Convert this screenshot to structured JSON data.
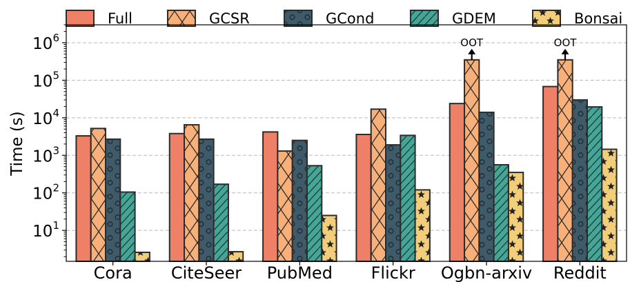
{
  "chart_data": {
    "type": "bar",
    "title": "",
    "xlabel": "",
    "ylabel": "Time (s)",
    "yscale": "log",
    "ylim": [
      1.5,
      3000000
    ],
    "y_ticks": [
      {
        "base": "10",
        "exp": "1",
        "value": 10
      },
      {
        "base": "10",
        "exp": "2",
        "value": 100
      },
      {
        "base": "10",
        "exp": "3",
        "value": 1000
      },
      {
        "base": "10",
        "exp": "4",
        "value": 10000
      },
      {
        "base": "10",
        "exp": "5",
        "value": 100000
      },
      {
        "base": "10",
        "exp": "6",
        "value": 1000000
      }
    ],
    "grid": "horizontal dashed",
    "legend_position": "top",
    "categories": [
      "Cora",
      "CiteSeer",
      "PubMed",
      "Flickr",
      "Ogbn-arxiv",
      "Reddit"
    ],
    "series": [
      {
        "name": "Full",
        "color": "#ee8068",
        "hatch": "none",
        "values": [
          3300,
          3800,
          4200,
          3600,
          24000,
          68000
        ]
      },
      {
        "name": "GCSR",
        "color": "#f7b07a",
        "hatch": "cross",
        "values": [
          5200,
          6500,
          1300,
          17000,
          350000,
          350000
        ]
      },
      {
        "name": "GCond",
        "color": "#3f5a68",
        "hatch": "circle",
        "values": [
          2700,
          2700,
          2500,
          1900,
          14000,
          30000
        ]
      },
      {
        "name": "GDEM",
        "color": "#45a597",
        "hatch": "slash",
        "values": [
          105,
          170,
          530,
          3400,
          560,
          19500
        ]
      },
      {
        "name": "Bonsai",
        "color": "#f2ce7a",
        "hatch": "star",
        "values": [
          2.6,
          2.7,
          25,
          120,
          350,
          1450
        ]
      }
    ],
    "annotations": [
      {
        "text": "OOT",
        "category": "Ogbn-arxiv",
        "series": "GCSR"
      },
      {
        "text": "OOT",
        "category": "Reddit",
        "series": "GCSR"
      }
    ]
  }
}
